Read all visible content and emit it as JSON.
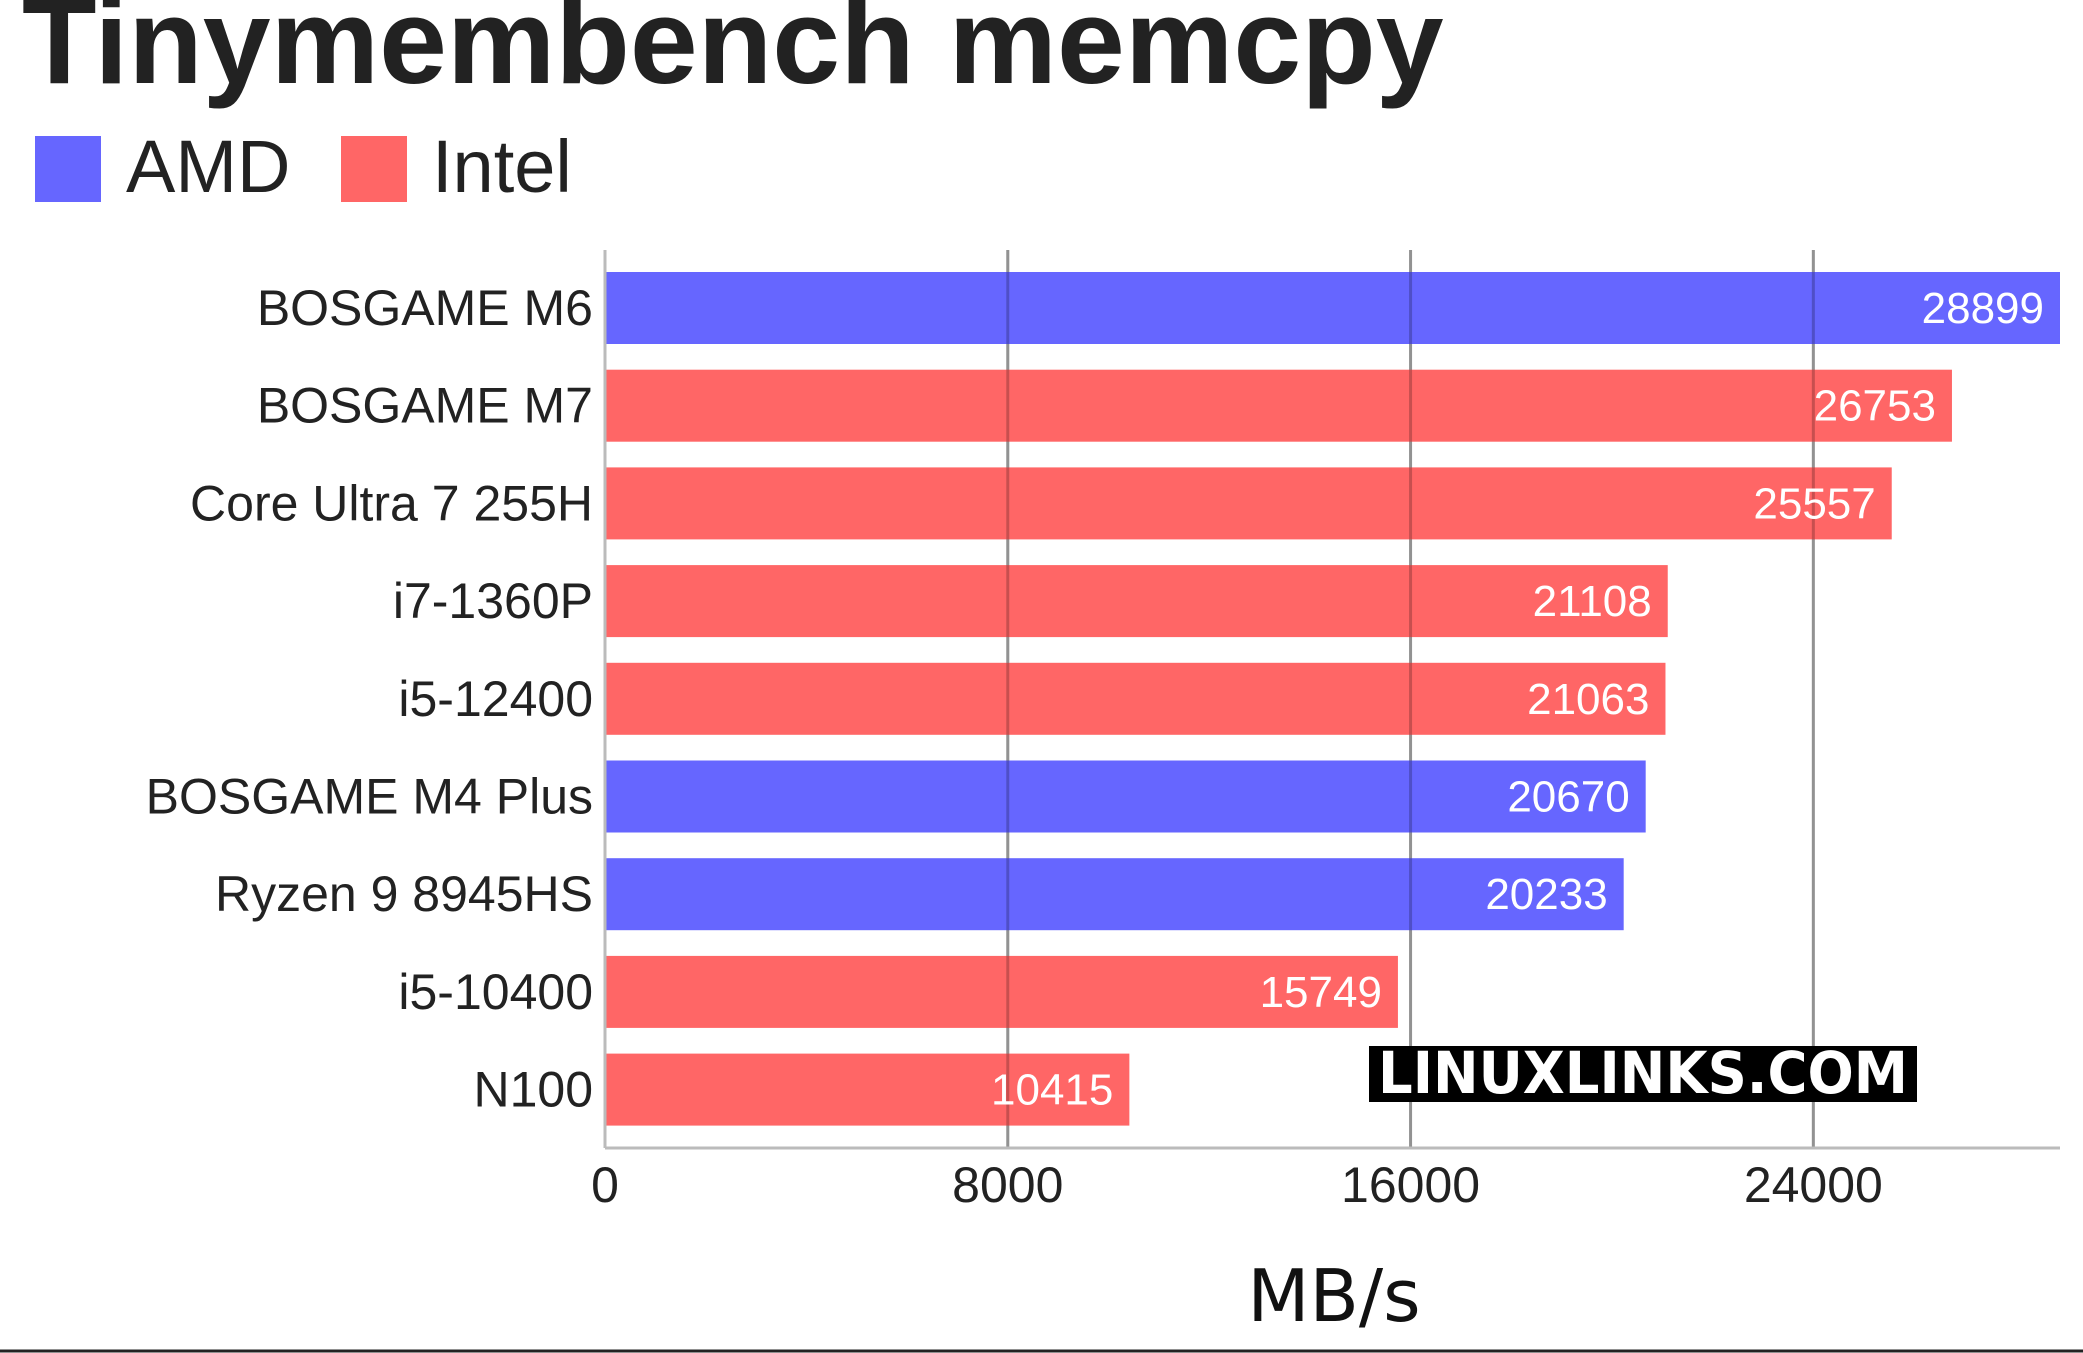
{
  "chart_data": {
    "type": "bar",
    "orientation": "horizontal",
    "title": "Tinymembench memcpy",
    "xlabel": "MB/s",
    "ylabel": "",
    "xlim": [
      0,
      28899
    ],
    "xticks": [
      0,
      8000,
      16000,
      24000
    ],
    "grid": true,
    "legend_placement": "top-left",
    "legend": [
      {
        "name": "AMD",
        "color": "#6666ff"
      },
      {
        "name": "Intel",
        "color": "#ff6666"
      }
    ],
    "categories": [
      "BOSGAME M6",
      "BOSGAME M7",
      "Core Ultra 7 255H",
      "i7-1360P",
      "i5-12400",
      "BOSGAME M4 Plus",
      "Ryzen 9 8945HS",
      "i5-10400",
      "N100"
    ],
    "values": [
      28899,
      26753,
      25557,
      21108,
      21063,
      20670,
      20233,
      15749,
      10415
    ],
    "groups": [
      "AMD",
      "Intel",
      "Intel",
      "Intel",
      "Intel",
      "AMD",
      "AMD",
      "Intel",
      "Intel"
    ]
  },
  "watermark": "LINUXLINKS.COM"
}
